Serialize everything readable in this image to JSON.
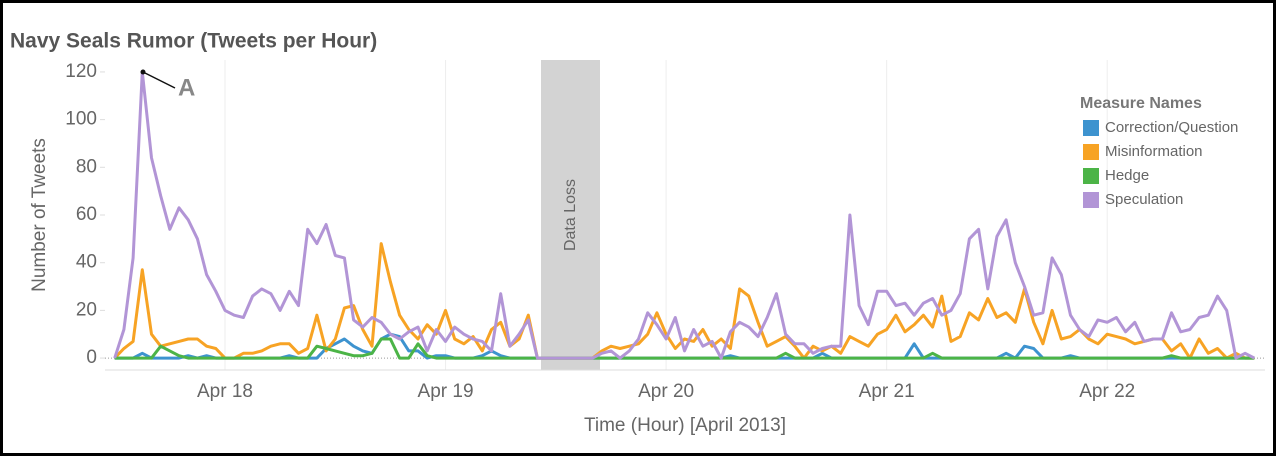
{
  "chart_data": {
    "type": "line",
    "title": "Navy Seals Rumor (Tweets per Hour)",
    "x_label": "Time (Hour) [April 2013]",
    "y_label": "Number of Tweets",
    "legend_title": "Measure Names",
    "legend": "top-right",
    "annotations": [
      {
        "text": "A"
      },
      {
        "text": "Data Loss"
      }
    ],
    "categories": [
      null,
      null,
      null,
      null,
      null,
      null,
      null,
      null,
      null,
      null,
      null,
      null,
      "Apr 18",
      null,
      null,
      null,
      null,
      null,
      null,
      null,
      null,
      null,
      null,
      null,
      null,
      null,
      null,
      null,
      null,
      null,
      null,
      null,
      null,
      null,
      null,
      null,
      "Apr 19",
      null,
      null,
      null,
      null,
      null,
      null,
      null,
      null,
      null,
      null,
      null,
      null,
      null,
      null,
      null,
      null,
      null,
      null,
      null,
      null,
      null,
      null,
      null,
      "Apr 20",
      null,
      null,
      null,
      null,
      null,
      null,
      null,
      null,
      null,
      null,
      null,
      null,
      null,
      null,
      null,
      null,
      null,
      null,
      null,
      null,
      null,
      null,
      null,
      "Apr 21",
      null,
      null,
      null,
      null,
      null,
      null,
      null,
      null,
      null,
      null,
      null,
      null,
      null,
      null,
      null,
      null,
      null,
      null,
      null,
      null,
      null,
      null,
      null,
      "Apr 22",
      null,
      null,
      null,
      null,
      null,
      null,
      null,
      null,
      null,
      null,
      null,
      null,
      null,
      null,
      null,
      null
    ],
    "ylim": [
      -5,
      125
    ],
    "yticks": [
      0,
      20,
      40,
      60,
      80,
      100,
      120
    ],
    "grid": "x",
    "series": [
      {
        "name": "Correction/Question",
        "color": "#3d93cf",
        "values": [
          0,
          0,
          0,
          2,
          0,
          0,
          0,
          0,
          1,
          0,
          1,
          0,
          0,
          0,
          0,
          0,
          0,
          0,
          0,
          1,
          0,
          0,
          0,
          4,
          6,
          8,
          5,
          3,
          2,
          8,
          10,
          9,
          3,
          3,
          0,
          1,
          1,
          0,
          0,
          0,
          1,
          3,
          1,
          0,
          0,
          0,
          0,
          0,
          0,
          0,
          0,
          0,
          0,
          0,
          0,
          0,
          0,
          0,
          0,
          0,
          0,
          0,
          0,
          0,
          0,
          0,
          0,
          1,
          0,
          0,
          0,
          0,
          0,
          0,
          0,
          0,
          0,
          2,
          0,
          0,
          0,
          0,
          0,
          0,
          0,
          0,
          0,
          6,
          0,
          0,
          0,
          0,
          0,
          0,
          0,
          0,
          0,
          2,
          0,
          5,
          4,
          0,
          0,
          0,
          1,
          0,
          0,
          0,
          0,
          0,
          0,
          0,
          0,
          0,
          0,
          0,
          0,
          0,
          0,
          0,
          0,
          0,
          0,
          0,
          0
        ]
      },
      {
        "name": "Misinformation",
        "color": "#f7a324",
        "values": [
          0,
          4,
          7,
          37,
          10,
          5,
          6,
          7,
          8,
          8,
          5,
          4,
          0,
          0,
          2,
          2,
          3,
          5,
          6,
          6,
          2,
          4,
          18,
          3,
          8,
          21,
          22,
          12,
          5,
          48,
          32,
          18,
          12,
          8,
          14,
          10,
          20,
          8,
          6,
          9,
          3,
          12,
          15,
          5,
          8,
          18,
          0,
          0,
          0,
          0,
          0,
          0,
          0,
          3,
          5,
          4,
          5,
          6,
          10,
          19,
          10,
          4,
          8,
          7,
          12,
          5,
          8,
          4,
          29,
          26,
          15,
          5,
          7,
          9,
          5,
          0,
          5,
          3,
          5,
          2,
          9,
          7,
          5,
          10,
          12,
          18,
          11,
          14,
          18,
          13,
          26,
          7,
          9,
          19,
          16,
          25,
          17,
          19,
          15,
          29,
          15,
          6,
          20,
          8,
          9,
          12,
          8,
          6,
          10,
          9,
          8,
          6,
          7,
          8,
          8,
          3,
          6,
          0,
          8,
          2,
          4,
          0,
          2,
          0,
          0
        ]
      },
      {
        "name": "Hedge",
        "color": "#4cb447",
        "values": [
          0,
          0,
          0,
          0,
          0,
          5,
          3,
          1,
          0,
          0,
          0,
          0,
          0,
          0,
          0,
          0,
          0,
          0,
          0,
          0,
          0,
          0,
          5,
          4,
          3,
          2,
          1,
          1,
          2,
          8,
          8,
          0,
          0,
          6,
          1,
          0,
          0,
          0,
          0,
          0,
          0,
          0,
          0,
          0,
          0,
          0,
          0,
          0,
          0,
          0,
          0,
          0,
          0,
          0,
          0,
          0,
          0,
          0,
          0,
          0,
          0,
          0,
          0,
          0,
          0,
          0,
          0,
          0,
          0,
          0,
          0,
          0,
          0,
          2,
          0,
          0,
          0,
          0,
          0,
          0,
          0,
          0,
          0,
          0,
          0,
          0,
          0,
          0,
          0,
          2,
          0,
          0,
          0,
          0,
          0,
          0,
          0,
          0,
          0,
          0,
          0,
          0,
          0,
          0,
          0,
          0,
          0,
          0,
          0,
          0,
          0,
          0,
          0,
          0,
          0,
          1,
          0,
          0,
          0,
          0,
          0,
          0,
          0,
          0,
          0
        ]
      },
      {
        "name": "Speculation",
        "color": "#b295d6",
        "values": [
          0,
          12,
          42,
          120,
          84,
          68,
          54,
          63,
          58,
          50,
          35,
          28,
          20,
          18,
          17,
          26,
          29,
          27,
          20,
          28,
          22,
          54,
          48,
          56,
          43,
          42,
          16,
          13,
          17,
          15,
          10,
          8,
          11,
          13,
          3,
          12,
          7,
          13,
          10,
          8,
          7,
          3,
          27,
          5,
          10,
          16,
          0,
          0,
          0,
          0,
          0,
          0,
          0,
          2,
          3,
          0,
          3,
          8,
          19,
          14,
          8,
          17,
          3,
          12,
          5,
          7,
          0,
          11,
          15,
          13,
          9,
          17,
          27,
          10,
          6,
          6,
          2,
          4,
          5,
          5,
          60,
          22,
          14,
          28,
          28,
          22,
          23,
          18,
          23,
          25,
          18,
          20,
          27,
          50,
          54,
          29,
          51,
          58,
          40,
          30,
          18,
          19,
          42,
          35,
          18,
          12,
          9,
          16,
          15,
          17,
          11,
          15,
          7,
          8,
          8,
          19,
          11,
          12,
          17,
          18,
          26,
          20,
          0,
          2,
          0
        ]
      }
    ]
  }
}
